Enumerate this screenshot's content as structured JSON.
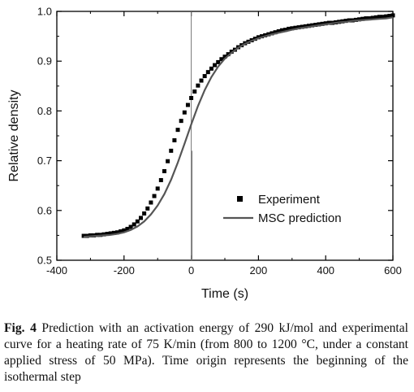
{
  "chart_data": {
    "type": "line",
    "xlabel": "Time (s)",
    "ylabel": "Relative density",
    "xlim": [
      -400,
      600
    ],
    "ylim": [
      0.5,
      1.0
    ],
    "x_ticks": [
      "-400",
      "-200",
      "0",
      "200",
      "400",
      "600"
    ],
    "y_ticks": [
      "0.5",
      "0.6",
      "0.7",
      "0.8",
      "0.9",
      "1.0"
    ],
    "grid": false,
    "legend_position": "lower-right",
    "vertical_line": {
      "x": 0,
      "y_range": [
        0.5,
        1.0
      ]
    },
    "vertical_marker": {
      "x": 0,
      "y_range": [
        0.5,
        0.72
      ]
    },
    "series": [
      {
        "name": "Experiment",
        "marker": "square",
        "x": [
          -320,
          -310,
          -300,
          -290,
          -280,
          -270,
          -260,
          -250,
          -240,
          -230,
          -220,
          -210,
          -200,
          -190,
          -180,
          -170,
          -160,
          -150,
          -140,
          -130,
          -120,
          -110,
          -100,
          -90,
          -80,
          -70,
          -60,
          -50,
          -40,
          -30,
          -20,
          -10,
          0,
          10,
          20,
          30,
          40,
          50,
          60,
          70,
          80,
          90,
          100,
          110,
          120,
          130,
          140,
          150,
          160,
          170,
          180,
          190,
          200,
          210,
          220,
          230,
          240,
          250,
          260,
          270,
          280,
          290,
          300,
          310,
          320,
          330,
          340,
          350,
          360,
          370,
          380,
          390,
          400,
          410,
          420,
          430,
          440,
          450,
          460,
          470,
          480,
          490,
          500,
          510,
          520,
          530,
          540,
          550,
          560,
          570,
          580,
          590,
          600
        ],
        "y": [
          0.549,
          0.549,
          0.55,
          0.55,
          0.551,
          0.551,
          0.552,
          0.553,
          0.554,
          0.555,
          0.556,
          0.558,
          0.56,
          0.563,
          0.567,
          0.572,
          0.578,
          0.585,
          0.594,
          0.604,
          0.616,
          0.629,
          0.644,
          0.661,
          0.679,
          0.699,
          0.72,
          0.741,
          0.762,
          0.78,
          0.797,
          0.812,
          0.826,
          0.839,
          0.851,
          0.861,
          0.87,
          0.878,
          0.885,
          0.892,
          0.898,
          0.904,
          0.909,
          0.914,
          0.919,
          0.923,
          0.928,
          0.932,
          0.936,
          0.939,
          0.942,
          0.945,
          0.948,
          0.95,
          0.952,
          0.954,
          0.956,
          0.958,
          0.96,
          0.962,
          0.963,
          0.965,
          0.966,
          0.967,
          0.968,
          0.969,
          0.97,
          0.971,
          0.972,
          0.973,
          0.974,
          0.975,
          0.976,
          0.977,
          0.977,
          0.978,
          0.979,
          0.98,
          0.981,
          0.982,
          0.982,
          0.983,
          0.984,
          0.985,
          0.986,
          0.986,
          0.987,
          0.988,
          0.989,
          0.989,
          0.99,
          0.991,
          0.992
        ]
      },
      {
        "name": "MSC prediction",
        "marker": "line",
        "x": [
          -320,
          -300,
          -280,
          -260,
          -240,
          -220,
          -200,
          -180,
          -160,
          -140,
          -120,
          -100,
          -80,
          -60,
          -40,
          -20,
          0,
          20,
          40,
          60,
          80,
          100,
          120,
          140,
          160,
          180,
          200,
          220,
          240,
          260,
          280,
          300,
          320,
          340,
          360,
          380,
          400,
          420,
          440,
          460,
          480,
          500,
          520,
          540,
          560,
          580,
          600
        ],
        "y": [
          0.547,
          0.548,
          0.549,
          0.55,
          0.551,
          0.553,
          0.556,
          0.561,
          0.568,
          0.578,
          0.592,
          0.61,
          0.633,
          0.662,
          0.696,
          0.734,
          0.773,
          0.81,
          0.842,
          0.868,
          0.889,
          0.905,
          0.917,
          0.927,
          0.935,
          0.941,
          0.946,
          0.95,
          0.954,
          0.957,
          0.96,
          0.963,
          0.966,
          0.968,
          0.97,
          0.972,
          0.974,
          0.976,
          0.978,
          0.979,
          0.981,
          0.982,
          0.983,
          0.984,
          0.985,
          0.986,
          0.988
        ]
      }
    ]
  },
  "caption": {
    "label": "Fig. 4",
    "text": " Prediction with an activation energy of 290 kJ/mol and experimental curve for a heating rate of 75 K/min (from 800 to 1200 °C, under a constant applied stress of 50 MPa). Time origin represents the beginning of the isothermal step"
  },
  "colors": {
    "axis": "#000000",
    "experiment": "#000000",
    "prediction": "#555555",
    "vertical_line": "#777777"
  }
}
